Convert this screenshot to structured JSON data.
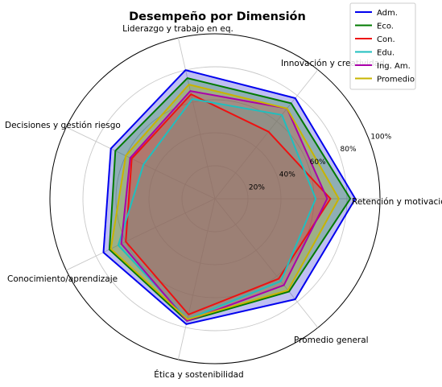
{
  "chart_data": {
    "type": "radar",
    "title": "Desempeño por Dimensión",
    "axes": [
      "Retención y motivación",
      "Innovación y creatividad",
      "Liderazgo y trabajo en eq.",
      "Decisiones y gestión riesgo",
      "Conocimiento/aprendizaje",
      "Ética y sostenibilidad",
      "Promedio general"
    ],
    "radial_ticks": [
      "20%",
      "40%",
      "60%",
      "80%",
      "100%"
    ],
    "radial_tick_values": [
      20,
      40,
      60,
      80,
      100
    ],
    "rlim": [
      0,
      100
    ],
    "grid": true,
    "legend_position": "top-right",
    "series": [
      {
        "name": "Adm.",
        "color": "#0000ee",
        "fill": "#0000cc",
        "values": [
          85,
          78,
          80,
          70,
          75,
          78,
          78
        ]
      },
      {
        "name": "Eco.",
        "color": "#007a00",
        "fill": "#007a00",
        "values": [
          82,
          74,
          75,
          67,
          71,
          76,
          72
        ]
      },
      {
        "name": "Con.",
        "color": "#ee1111",
        "fill": "#ee1111",
        "values": [
          70,
          52,
          65,
          56,
          60,
          72,
          62
        ]
      },
      {
        "name": "Edu.",
        "color": "#1fbfbf",
        "fill": "#1fbfbf",
        "values": [
          61,
          65,
          62,
          48,
          65,
          75,
          64
        ]
      },
      {
        "name": "Ing. Am.",
        "color": "#aa00aa",
        "fill": "#aa00aa",
        "values": [
          68,
          70,
          67,
          57,
          63,
          76,
          67
        ]
      },
      {
        "name": "Promedio",
        "color": "#c8b400",
        "fill": "#c8b400",
        "values": [
          75,
          70,
          71,
          60,
          70,
          75,
          71
        ]
      }
    ]
  }
}
